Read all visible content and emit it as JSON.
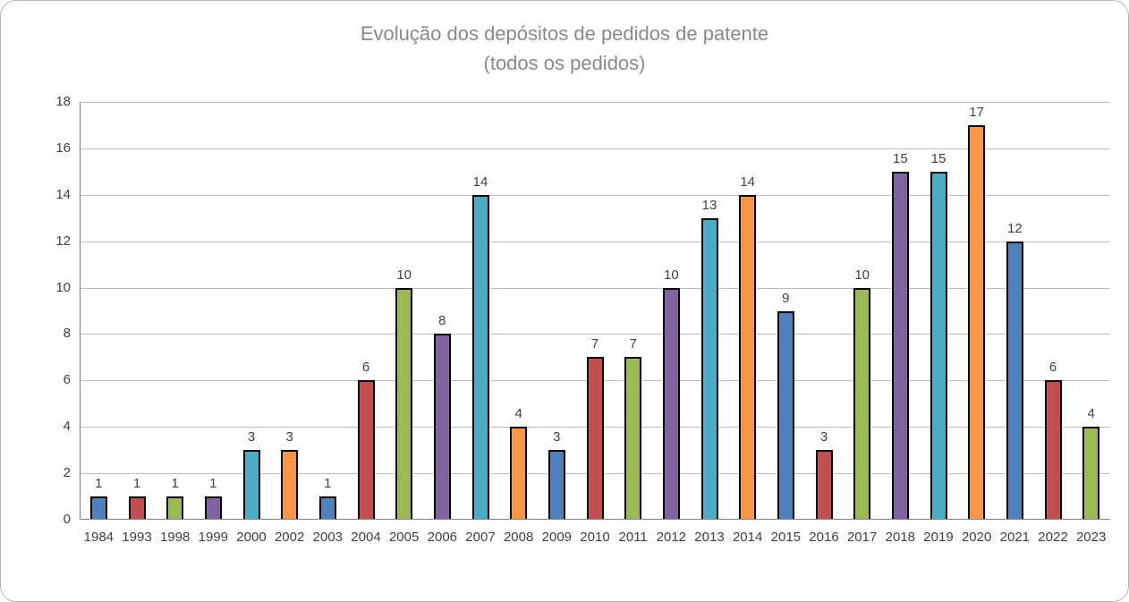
{
  "title": {
    "line1": "Evolução dos depósitos de pedidos de patente",
    "line2": "(todos os pedidos)"
  },
  "chart_data": {
    "type": "bar",
    "title": "Evolução dos depósitos de pedidos de patente",
    "subtitle": "(todos os pedidos)",
    "categories": [
      "1984",
      "1993",
      "1998",
      "1999",
      "2000",
      "2002",
      "2003",
      "2004",
      "2005",
      "2006",
      "2007",
      "2008",
      "2009",
      "2010",
      "2011",
      "2012",
      "2013",
      "2014",
      "2015",
      "2016",
      "2017",
      "2018",
      "2019",
      "2020",
      "2021",
      "2022",
      "2023"
    ],
    "values": [
      1,
      1,
      1,
      1,
      3,
      3,
      1,
      6,
      10,
      8,
      14,
      4,
      3,
      7,
      7,
      10,
      13,
      14,
      9,
      3,
      10,
      15,
      15,
      17,
      12,
      6,
      4
    ],
    "data_labels_shown": true,
    "xlabel": "",
    "ylabel": "",
    "ylim": [
      0,
      18
    ],
    "y_ticks": [
      0,
      2,
      4,
      6,
      8,
      10,
      12,
      14,
      16,
      18
    ],
    "grid": true,
    "legend": "none",
    "bar_color_cycle": [
      "#4F81BD",
      "#C0504D",
      "#9BBB59",
      "#8064A2",
      "#4BACC6",
      "#F79646"
    ],
    "bar_border_color": "#000000",
    "gridline_color": "#bfbfbf",
    "axis_line_color": "#808080",
    "title_color": "#898989",
    "label_color": "#404040"
  }
}
